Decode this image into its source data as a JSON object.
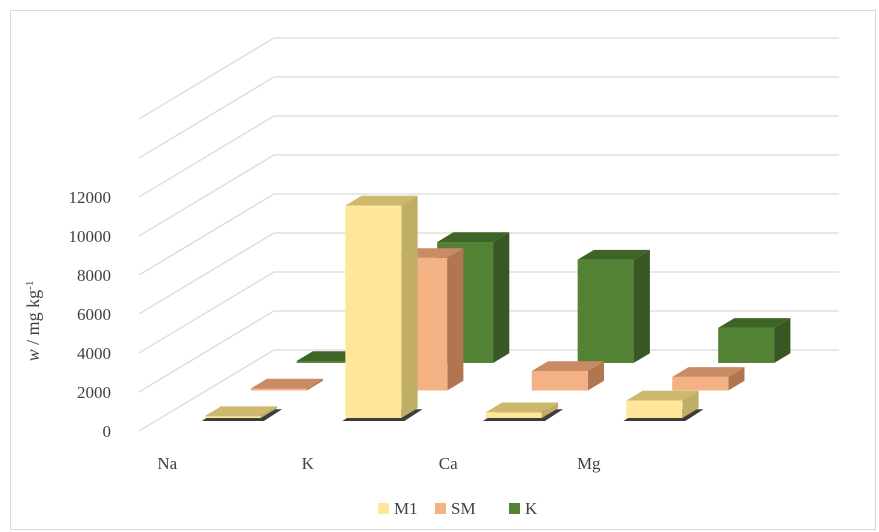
{
  "chart_data": {
    "type": "bar",
    "categories": [
      "Na",
      "K",
      "Ca",
      "Mg"
    ],
    "series": [
      {
        "name": "M1",
        "values": [
          100,
          10900,
          300,
          900
        ],
        "color": "#FFE699",
        "top": "#CDB96E",
        "side": "#BFAE63"
      },
      {
        "name": "SM",
        "values": [
          100,
          6800,
          1000,
          700
        ],
        "color": "#F4B183",
        "top": "#C98B64",
        "side": "#B07650"
      },
      {
        "name": "K",
        "values": [
          100,
          6200,
          5300,
          1800
        ],
        "color": "#548235",
        "top": "#3E6427",
        "side": "#385723"
      }
    ],
    "ylabel_main": "w",
    "ylabel_rest": " / mg kg",
    "ylabel_sup": "-1",
    "yticks": [
      "0",
      "2000",
      "4000",
      "6000",
      "8000",
      "10000",
      "12000"
    ],
    "ylim": [
      0,
      12000
    ],
    "grid": true,
    "legend_position": "bottom"
  }
}
